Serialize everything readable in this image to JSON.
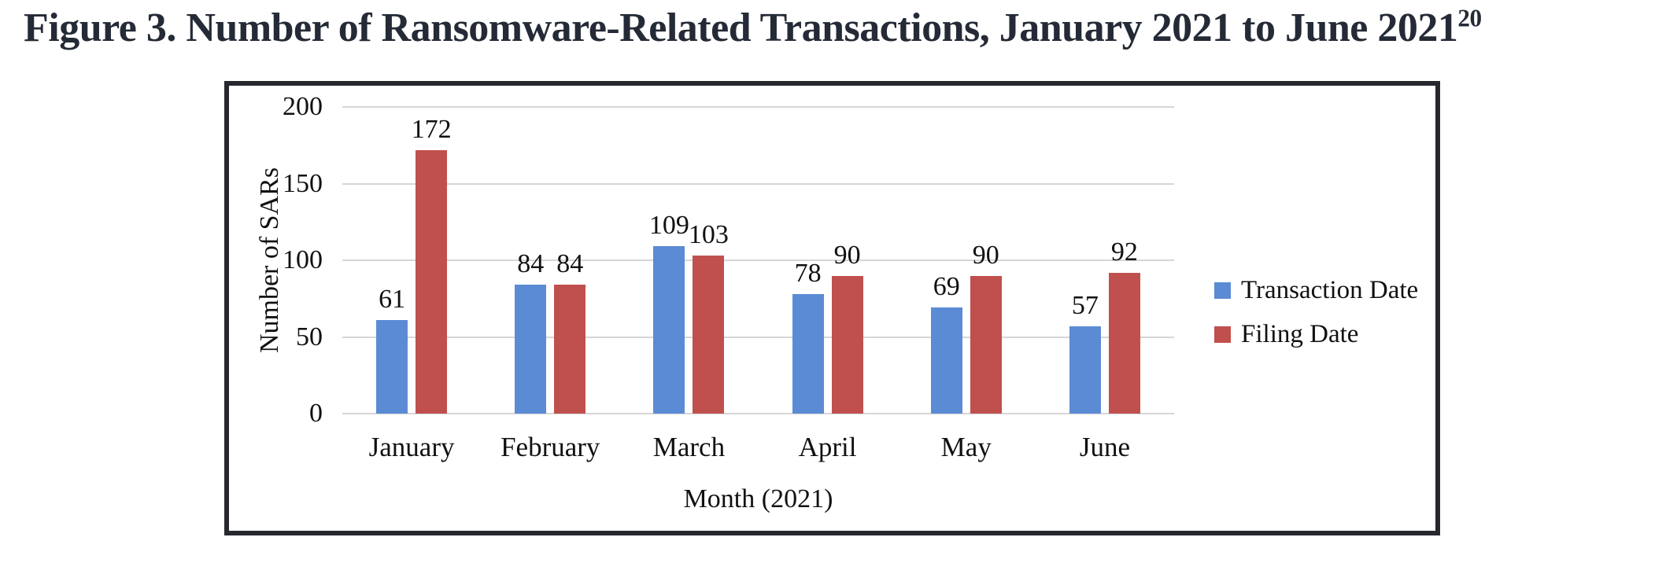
{
  "figure": {
    "title": "Figure 3. Number of Ransomware-Related Transactions, January 2021 to June 2021",
    "title_superscript": "20"
  },
  "chart_data": {
    "type": "bar",
    "title": "Figure 3. Number of Ransomware-Related Transactions, January 2021 to June 2021",
    "categories": [
      "January",
      "February",
      "March",
      "April",
      "May",
      "June"
    ],
    "series": [
      {
        "name": "Transaction Date",
        "color": "#5b8bd4",
        "values": [
          61,
          84,
          109,
          78,
          69,
          57
        ]
      },
      {
        "name": "Filing Date",
        "color": "#c0504d",
        "values": [
          172,
          84,
          103,
          90,
          90,
          92
        ]
      }
    ],
    "xlabel": "Month (2021)",
    "ylabel": "Number of SARs",
    "ylim": [
      0,
      200
    ],
    "ytick_interval": 50,
    "ytick_labels": [
      "0",
      "50",
      "100",
      "150",
      "200"
    ],
    "grid": "horizontal-on",
    "legend_position": "right",
    "value_labels_shown": true
  },
  "colors": {
    "bar_blue": "#5b8bd4",
    "bar_red": "#c0504d",
    "gridline": "#d6d6d6",
    "frame_border": "#26282e",
    "title_text": "#242b36",
    "chart_text": "#111111",
    "background": "#ffffff"
  }
}
